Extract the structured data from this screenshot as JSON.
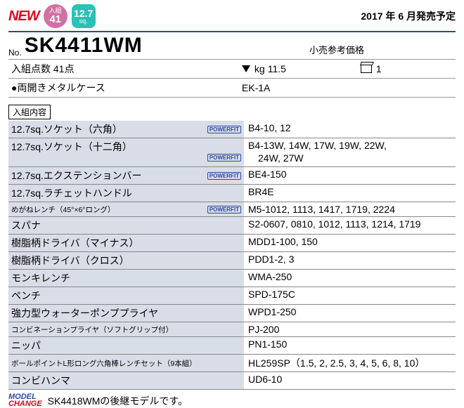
{
  "header": {
    "new_label": "NEW",
    "count_badge": {
      "label": "入組",
      "value": "41",
      "bg": "#d36fa3"
    },
    "size_badge": {
      "value": "12.7",
      "unit": "sq.",
      "bg": "#2bc1b6"
    },
    "release_date": "2017 年 6 月発売予定"
  },
  "title": {
    "prefix": "No.",
    "model": "SK4411WM",
    "price_label": "小売参考価格"
  },
  "info1": {
    "itemcount": "入組点数 41点",
    "weight_label": "kg",
    "weight_value": "11.5",
    "box_value": "1"
  },
  "info2": {
    "case_label": "●両開きメタルケース",
    "case_value": "EK-1A"
  },
  "section_label": "入組内容",
  "powfit_label": "POWERFIT",
  "rows": [
    {
      "left": "12.7sq.ソケット（六角）",
      "powfit": true,
      "right": "B4-10, 12"
    },
    {
      "left": "12.7sq.ソケット（十二角）",
      "powfit": true,
      "right": "B4-13W, 14W, 17W, 19W, 22W,\n　24W, 27W",
      "multi": true
    },
    {
      "left": "12.7sq.エクステンションバー",
      "powfit": true,
      "right": "BE4-150"
    },
    {
      "left": "12.7sq.ラチェットハンドル",
      "powfit": false,
      "right": "BR4E"
    },
    {
      "left": "めがねレンチ（45°×6°ロング）",
      "powfit": true,
      "mini": true,
      "right": "M5-1012, 1113, 1417, 1719, 2224"
    },
    {
      "left": "スパナ",
      "powfit": false,
      "right": "S2-0607, 0810, 1012, 1113, 1214, 1719"
    },
    {
      "left": "樹脂柄ドライバ（マイナス）",
      "powfit": false,
      "right": "MDD1-100, 150"
    },
    {
      "left": "樹脂柄ドライバ（クロス）",
      "powfit": false,
      "right": "PDD1-2, 3"
    },
    {
      "left": "モンキレンチ",
      "powfit": false,
      "right": "WMA-250"
    },
    {
      "left": "ペンチ",
      "powfit": false,
      "right": "SPD-175C"
    },
    {
      "left": "強力型ウォーターポンププライヤ",
      "powfit": false,
      "right": "WPD1-250"
    },
    {
      "left": "コンビネーションプライヤ（ソフトグリップ付）",
      "powfit": false,
      "mini": true,
      "right": "PJ-200"
    },
    {
      "left": "ニッパ",
      "powfit": false,
      "right": "PN1-150"
    },
    {
      "left": "ボールポイントL形ロング六角棒レンチセット（9本組）",
      "powfit": false,
      "mini": true,
      "right": "HL259SP（1.5, 2, 2.5, 3, 4, 5, 6, 8, 10）"
    },
    {
      "left": "コンビハンマ",
      "powfit": false,
      "right": "UD6-10"
    }
  ],
  "footer": {
    "badge_top": "MODEL",
    "badge_bottom": "CHANGE",
    "text": "SK4418WMの後継モデルです。"
  }
}
